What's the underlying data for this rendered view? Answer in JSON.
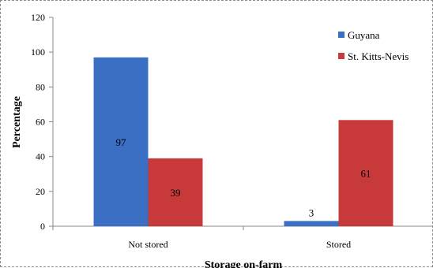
{
  "chart_data": {
    "type": "bar",
    "title": "",
    "xlabel": "Storage on-farm",
    "ylabel": "Percentage",
    "ylim": [
      0,
      120
    ],
    "yticks": [
      0,
      20,
      40,
      60,
      80,
      100,
      120
    ],
    "categories": [
      "Not stored",
      "Stored"
    ],
    "series": [
      {
        "name": "Guyana",
        "values": [
          97,
          3
        ],
        "color": "#3a6fc4"
      },
      {
        "name": "St. Kitts-Nevis",
        "values": [
          39,
          61
        ],
        "color": "#c83a3a"
      }
    ],
    "data_labels": true,
    "grid": false,
    "legend_position": "top-right"
  }
}
